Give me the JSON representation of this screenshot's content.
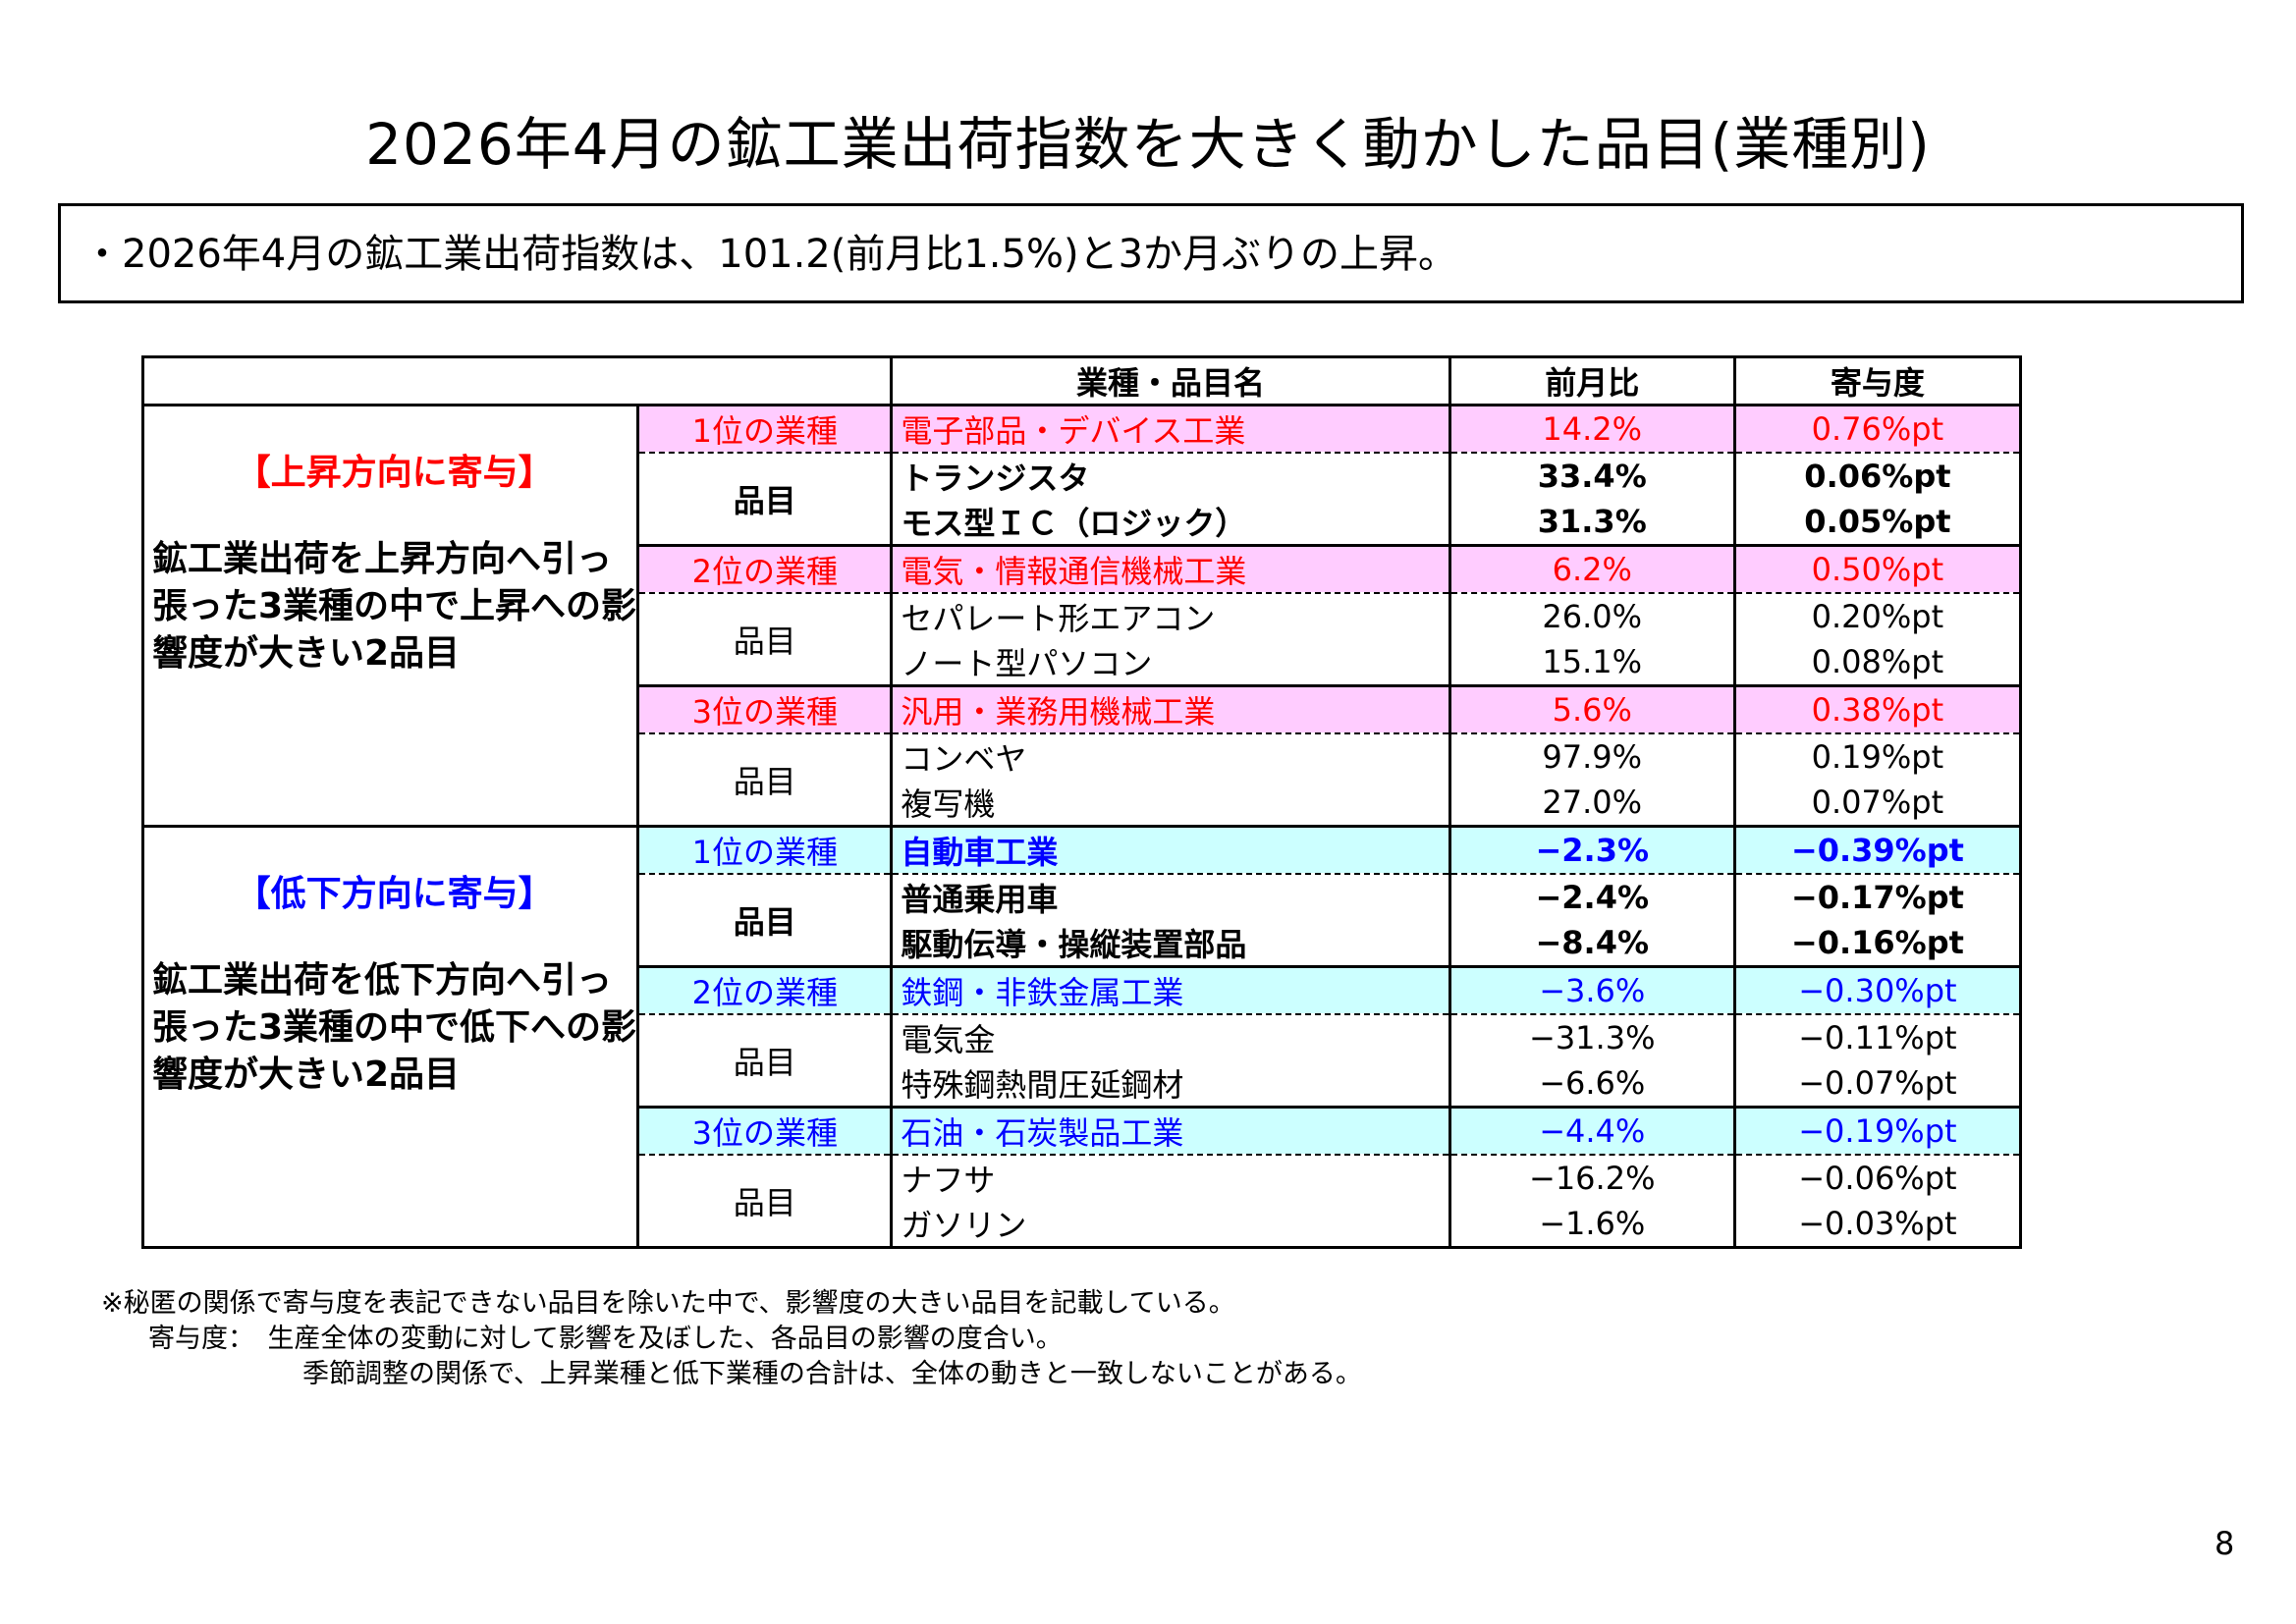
{
  "title": "2026年4月の鉱工業出荷指数を大きく動かした品目(業種別)",
  "summary": "・2026年4月の鉱工業出荷指数は、101.2(前月比1.5%)と3か月ぶりの上昇。",
  "table": {
    "headers": {
      "name": "業種・品目名",
      "mom": "前月比",
      "contrib": "寄与度"
    },
    "up": {
      "heading": "【上昇方向に寄与】",
      "description": "鉱工業出荷を上昇方向へ引っ張った3業種の中で上昇への影響度が大きい2品目",
      "groups": [
        {
          "rank": "1位の業種",
          "industry": "電子部品・デバイス工業",
          "mom": "14.2%",
          "contrib": "0.76%pt",
          "items_label": "品目",
          "items": [
            {
              "name": "トランジスタ",
              "mom": "33.4%",
              "contrib": "0.06%pt"
            },
            {
              "name": "モス型ＩＣ（ロジック）",
              "mom": "31.3%",
              "contrib": "0.05%pt"
            }
          ]
        },
        {
          "rank": "2位の業種",
          "industry": "電気・情報通信機械工業",
          "mom": "6.2%",
          "contrib": "0.50%pt",
          "items_label": "品目",
          "items": [
            {
              "name": "セパレート形エアコン",
              "mom": "26.0%",
              "contrib": "0.20%pt"
            },
            {
              "name": "ノート型パソコン",
              "mom": "15.1%",
              "contrib": "0.08%pt"
            }
          ]
        },
        {
          "rank": "3位の業種",
          "industry": "汎用・業務用機械工業",
          "mom": "5.6%",
          "contrib": "0.38%pt",
          "items_label": "品目",
          "items": [
            {
              "name": "コンベヤ",
              "mom": "97.9%",
              "contrib": "0.19%pt"
            },
            {
              "name": "複写機",
              "mom": "27.0%",
              "contrib": "0.07%pt"
            }
          ]
        }
      ]
    },
    "down": {
      "heading": "【低下方向に寄与】",
      "description": "鉱工業出荷を低下方向へ引っ張った3業種の中で低下への影響度が大きい2品目",
      "groups": [
        {
          "rank": "1位の業種",
          "industry": "自動車工業",
          "mom": "−2.3%",
          "contrib": "−0.39%pt",
          "items_label": "品目",
          "items": [
            {
              "name": "普通乗用車",
              "mom": "−2.4%",
              "contrib": "−0.17%pt"
            },
            {
              "name": "駆動伝導・操縦装置部品",
              "mom": "−8.4%",
              "contrib": "−0.16%pt"
            }
          ]
        },
        {
          "rank": "2位の業種",
          "industry": "鉄鋼・非鉄金属工業",
          "mom": "−3.6%",
          "contrib": "−0.30%pt",
          "items_label": "品目",
          "items": [
            {
              "name": "電気金",
              "mom": "−31.3%",
              "contrib": "−0.11%pt"
            },
            {
              "name": "特殊鋼熱間圧延鋼材",
              "mom": "−6.6%",
              "contrib": "−0.07%pt"
            }
          ]
        },
        {
          "rank": "3位の業種",
          "industry": "石油・石炭製品工業",
          "mom": "−4.4%",
          "contrib": "−0.19%pt",
          "items_label": "品目",
          "items": [
            {
              "name": "ナフサ",
              "mom": "−16.2%",
              "contrib": "−0.06%pt"
            },
            {
              "name": "ガソリン",
              "mom": "−1.6%",
              "contrib": "−0.03%pt"
            }
          ]
        }
      ]
    }
  },
  "notes": [
    "※秘匿の関係で寄与度を表記できない品目を除いた中で、影響度の大きい品目を記載している。",
    "寄与度：　生産全体の変動に対して影響を及ぼした、各品目の影響の度合い。",
    "季節調整の関係で、上昇業種と低下業種の合計は、全体の動きと一致しないことがある。"
  ],
  "page_number": "8",
  "colors": {
    "up_bg": "#ffccff",
    "down_bg": "#ccffff",
    "up_text": "#ff0000",
    "down_text": "#0000ff"
  }
}
